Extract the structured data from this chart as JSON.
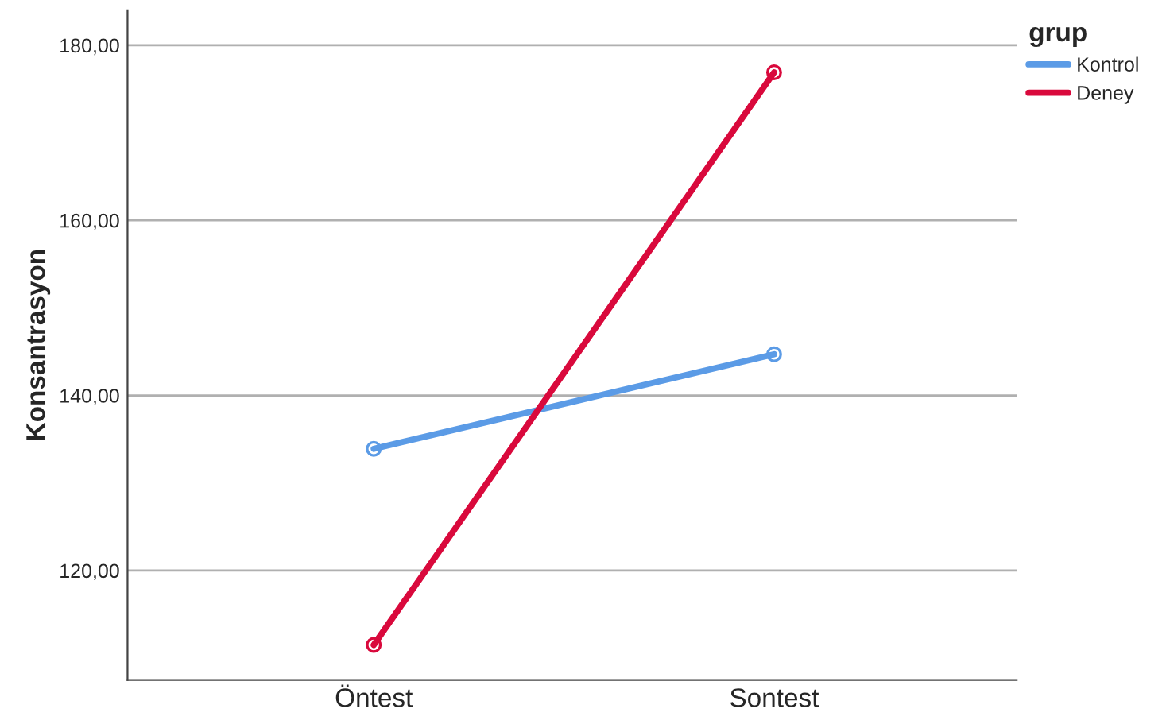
{
  "chart_data": {
    "type": "line",
    "ylabel": "Konsantrasyon",
    "legend_title": "grup",
    "categories": [
      "Öntest",
      "Sontest"
    ],
    "series": [
      {
        "name": "Kontrol",
        "color": "#5b9be6",
        "values": [
          133.9,
          144.7
        ]
      },
      {
        "name": "Deney",
        "color": "#d9093c",
        "values": [
          111.5,
          176.9
        ]
      }
    ],
    "ylim": [
      107.5,
      184
    ],
    "yticks": [
      {
        "value": 120,
        "label": "120,00"
      },
      {
        "value": 140,
        "label": "140,00"
      },
      {
        "value": 160,
        "label": "160,00"
      },
      {
        "value": 180,
        "label": "180,00"
      }
    ],
    "grid": "y",
    "legend": "right",
    "marker": "circle",
    "line_style": "solid"
  }
}
